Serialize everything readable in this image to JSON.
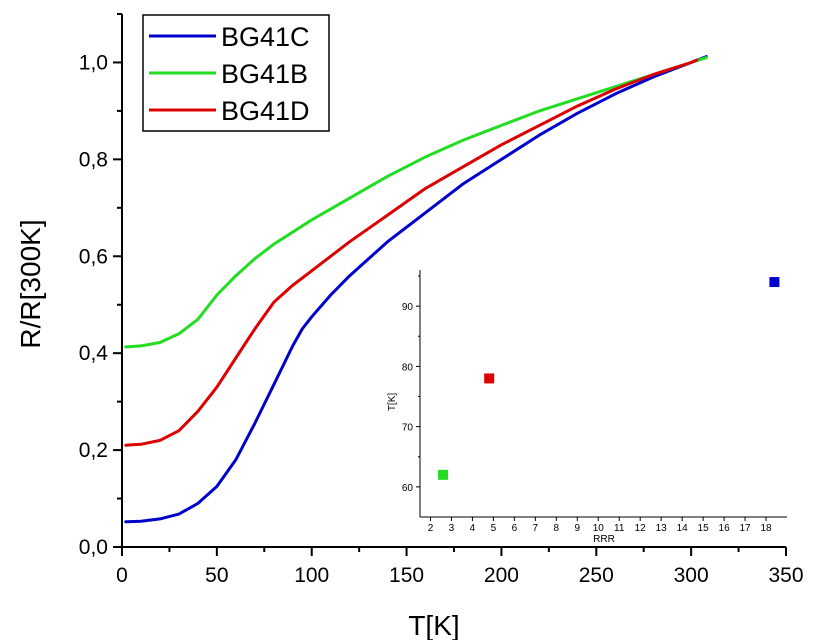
{
  "chart_data": [
    {
      "type": "line",
      "xlabel": "T[K]",
      "ylabel": "R/R[300K]",
      "xlim": [
        0,
        350
      ],
      "ylim": [
        0,
        1.1
      ],
      "xticks": [
        0,
        50,
        100,
        150,
        200,
        250,
        300,
        350
      ],
      "yticks": [
        0.0,
        0.2,
        0.4,
        0.6,
        0.8,
        1.0
      ],
      "xtick_labels": [
        "0",
        "50",
        "100",
        "150",
        "200",
        "250",
        "300",
        "350"
      ],
      "ytick_labels": [
        "0,0",
        "0,2",
        "0,4",
        "0,6",
        "0,8",
        "1,0"
      ],
      "legend_position": "top-left",
      "series": [
        {
          "name": "BG41C",
          "color": "#0000cc",
          "points": [
            [
              2,
              0.052
            ],
            [
              10,
              0.053
            ],
            [
              20,
              0.058
            ],
            [
              30,
              0.068
            ],
            [
              40,
              0.09
            ],
            [
              50,
              0.125
            ],
            [
              60,
              0.18
            ],
            [
              70,
              0.255
            ],
            [
              80,
              0.335
            ],
            [
              90,
              0.415
            ],
            [
              95,
              0.45
            ],
            [
              100,
              0.475
            ],
            [
              110,
              0.52
            ],
            [
              120,
              0.56
            ],
            [
              140,
              0.63
            ],
            [
              160,
              0.69
            ],
            [
              180,
              0.75
            ],
            [
              200,
              0.8
            ],
            [
              220,
              0.85
            ],
            [
              240,
              0.895
            ],
            [
              260,
              0.935
            ],
            [
              280,
              0.97
            ],
            [
              300,
              1.0
            ],
            [
              308,
              1.012
            ]
          ]
        },
        {
          "name": "BG41B",
          "color": "#22dd22",
          "points": [
            [
              2,
              0.413
            ],
            [
              10,
              0.415
            ],
            [
              20,
              0.422
            ],
            [
              30,
              0.44
            ],
            [
              40,
              0.47
            ],
            [
              50,
              0.52
            ],
            [
              60,
              0.56
            ],
            [
              70,
              0.595
            ],
            [
              80,
              0.625
            ],
            [
              100,
              0.675
            ],
            [
              120,
              0.72
            ],
            [
              140,
              0.765
            ],
            [
              160,
              0.805
            ],
            [
              180,
              0.84
            ],
            [
              200,
              0.87
            ],
            [
              220,
              0.9
            ],
            [
              240,
              0.925
            ],
            [
              260,
              0.95
            ],
            [
              280,
              0.975
            ],
            [
              300,
              1.0
            ],
            [
              308,
              1.01
            ]
          ]
        },
        {
          "name": "BG41D",
          "color": "#dd0000",
          "points": [
            [
              2,
              0.21
            ],
            [
              10,
              0.212
            ],
            [
              20,
              0.22
            ],
            [
              30,
              0.24
            ],
            [
              40,
              0.28
            ],
            [
              50,
              0.33
            ],
            [
              60,
              0.39
            ],
            [
              70,
              0.45
            ],
            [
              80,
              0.505
            ],
            [
              90,
              0.54
            ],
            [
              100,
              0.57
            ],
            [
              120,
              0.63
            ],
            [
              140,
              0.685
            ],
            [
              160,
              0.74
            ],
            [
              180,
              0.785
            ],
            [
              200,
              0.83
            ],
            [
              220,
              0.87
            ],
            [
              240,
              0.91
            ],
            [
              260,
              0.945
            ],
            [
              280,
              0.975
            ],
            [
              300,
              1.0
            ],
            [
              303,
              1.005
            ]
          ]
        }
      ]
    },
    {
      "type": "scatter",
      "xlabel": "RRR",
      "ylabel": "T[K]",
      "xlim": [
        1.5,
        19
      ],
      "ylim": [
        55,
        96
      ],
      "xticks": [
        2,
        3,
        4,
        5,
        6,
        7,
        8,
        9,
        10,
        11,
        12,
        13,
        14,
        15,
        16,
        17,
        18
      ],
      "xtick_labels": [
        "2",
        "3",
        "4",
        "5",
        "6",
        "7",
        "8",
        "9",
        "10",
        "11",
        "12",
        "13",
        "14",
        "15",
        "16",
        "17",
        "18"
      ],
      "yticks": [
        60,
        70,
        80,
        90
      ],
      "ytick_labels": [
        "60",
        "70",
        "80",
        "90"
      ],
      "points": [
        {
          "x": 2.6,
          "y": 62,
          "color": "#22dd22"
        },
        {
          "x": 4.8,
          "y": 78,
          "color": "#dd0000"
        },
        {
          "x": 18.4,
          "y": 94,
          "color": "#0000cc"
        }
      ]
    }
  ]
}
